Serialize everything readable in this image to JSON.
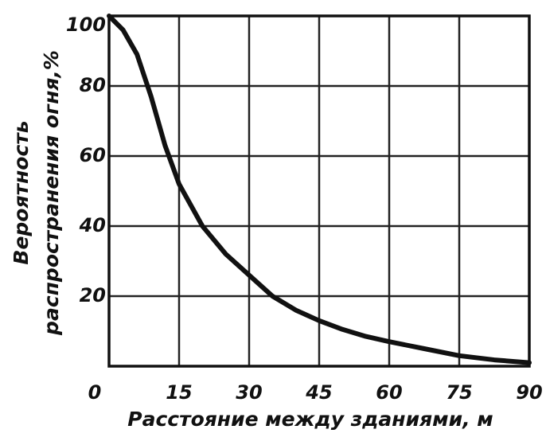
{
  "chart_data": {
    "type": "line",
    "xlabel": "Расстояние между зданиями, м",
    "ylabel": [
      "Вероятность",
      "распространения огня,%"
    ],
    "x": [
      0,
      3,
      6,
      9,
      12,
      15,
      20,
      25,
      30,
      35,
      40,
      45,
      50,
      55,
      60,
      67.5,
      75,
      82.5,
      90
    ],
    "values": [
      100,
      96,
      89,
      77,
      63,
      52,
      40,
      32,
      26,
      20,
      16,
      13,
      10.5,
      8.5,
      7,
      5,
      3,
      1.8,
      1
    ],
    "color": "#111111",
    "xlim": [
      0,
      90
    ],
    "xticks": [
      0,
      15,
      30,
      45,
      60,
      75,
      90
    ],
    "ylim": [
      0,
      100
    ],
    "yticks": [
      20,
      40,
      60,
      80,
      100
    ],
    "grid": true
  }
}
